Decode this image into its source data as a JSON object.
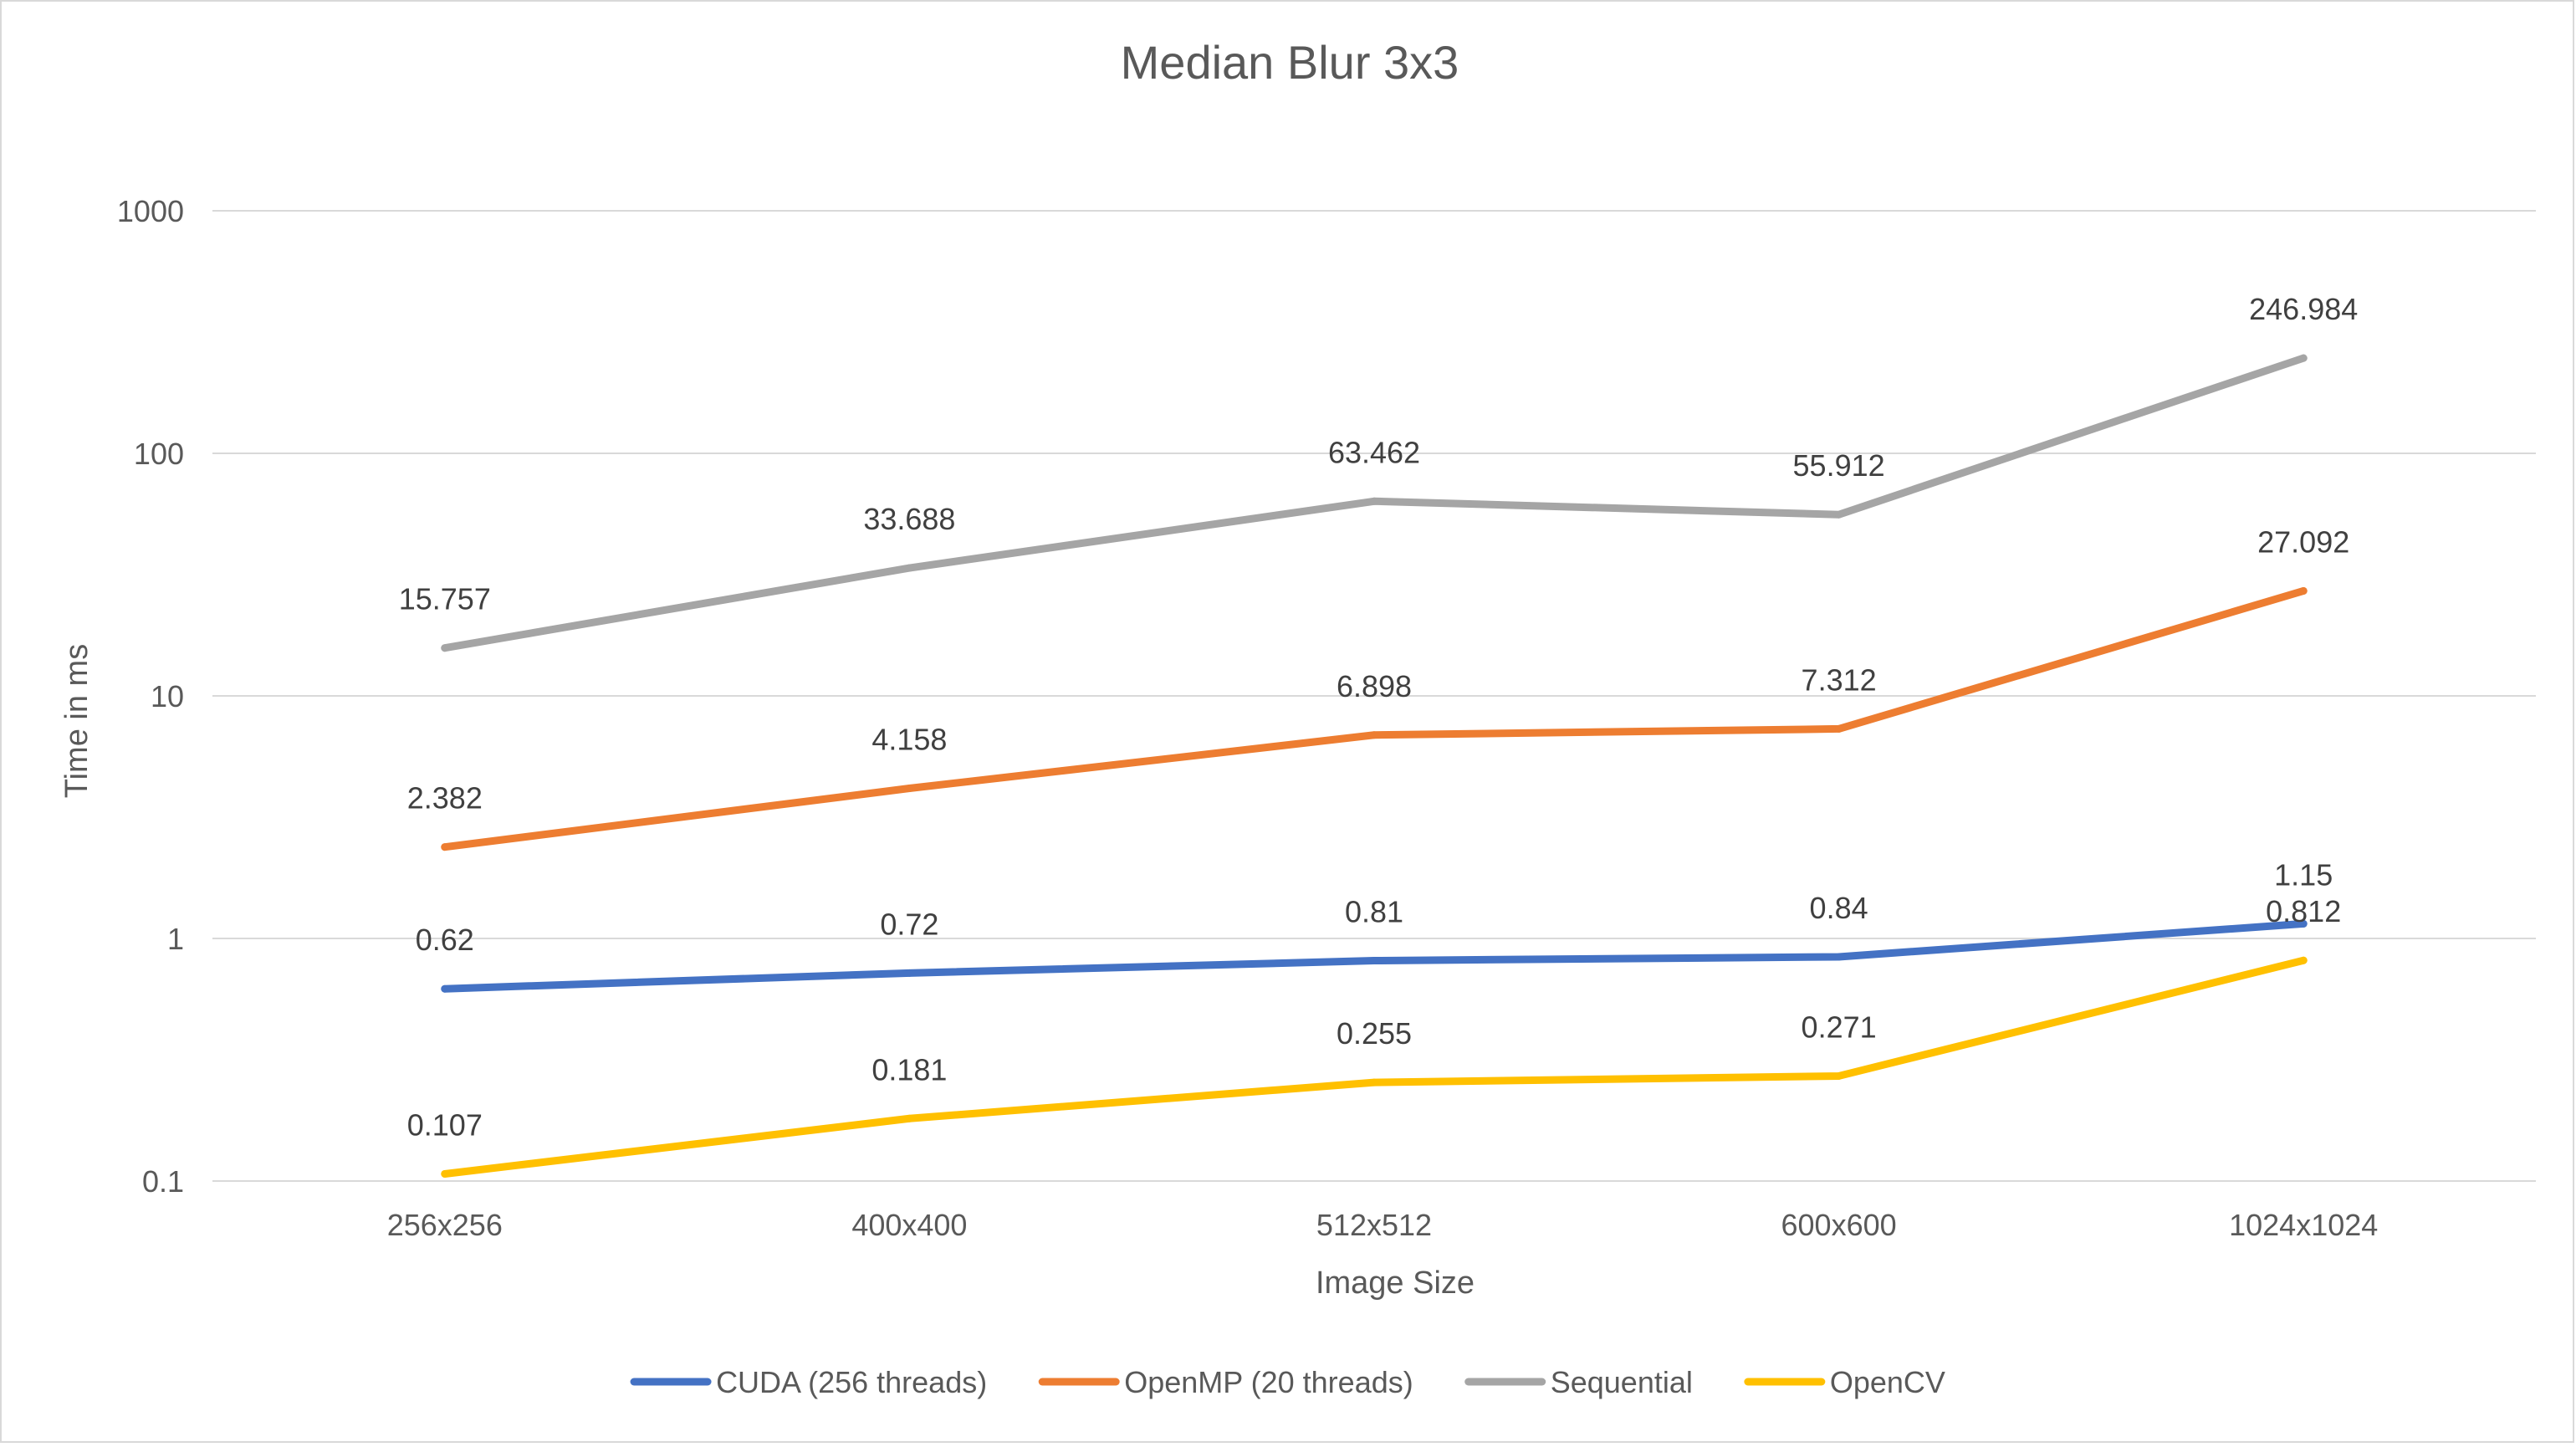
{
  "chart_data": {
    "type": "line",
    "title": "Median Blur 3x3",
    "xlabel": "Image Size",
    "ylabel": "Time in ms",
    "categories": [
      "256x256",
      "400x400",
      "512x512",
      "600x600",
      "1024x1024"
    ],
    "y_scale": "log",
    "ylim": [
      0.1,
      1000
    ],
    "y_ticks": [
      "0.1",
      "1",
      "10",
      "100",
      "1000"
    ],
    "grid": true,
    "legend_position": "bottom",
    "series": [
      {
        "name": "CUDA (256 threads)",
        "color": "#4472C4",
        "values": [
          0.62,
          0.72,
          0.81,
          0.84,
          1.15
        ],
        "labels": [
          "0.62",
          "0.72",
          "0.81",
          "0.84",
          "1.15"
        ]
      },
      {
        "name": "OpenMP (20 threads)",
        "color": "#ED7D31",
        "values": [
          2.382,
          4.158,
          6.898,
          7.312,
          27.092
        ],
        "labels": [
          "2.382",
          "4.158",
          "6.898",
          "7.312",
          "27.092"
        ]
      },
      {
        "name": "Sequential",
        "color": "#A5A5A5",
        "values": [
          15.757,
          33.688,
          63.462,
          55.912,
          246.984
        ],
        "labels": [
          "15.757",
          "33.688",
          "63.462",
          "55.912",
          "246.984"
        ]
      },
      {
        "name": "OpenCV",
        "color": "#FFC000",
        "values": [
          0.107,
          0.181,
          0.255,
          0.271,
          0.812
        ],
        "labels": [
          "0.107",
          "0.181",
          "0.255",
          "0.271",
          "0.812"
        ]
      }
    ]
  }
}
